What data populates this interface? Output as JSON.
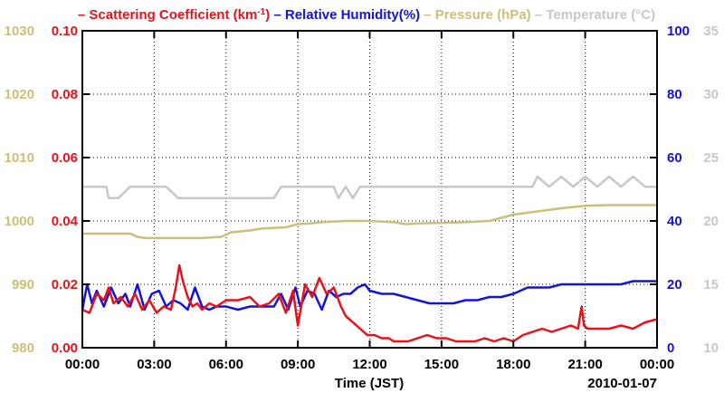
{
  "legend": [
    {
      "mark": "–",
      "label": "Scattering Coefficient (km",
      "sup": "-1",
      "tail": ")",
      "color": "#e8121b"
    },
    {
      "mark": "–",
      "label": "Relative Humidity(%)",
      "color": "#1414d6"
    },
    {
      "mark": "–",
      "label": "Pressure (hPa)",
      "color": "#cbbf7a"
    },
    {
      "mark": "–",
      "label": "Temperature (°C)",
      "color": "#c8c8c8"
    }
  ],
  "chart_data": {
    "type": "line",
    "xlabel": "Time (JST)",
    "date_label": "2010-01-07",
    "x_ticks": [
      "00:00",
      "03:00",
      "06:00",
      "09:00",
      "12:00",
      "15:00",
      "18:00",
      "21:00",
      "00:00"
    ],
    "xlim_hours": [
      0,
      24
    ],
    "grid": true,
    "axes": {
      "scattering": {
        "ticks": [
          "0.00",
          "0.02",
          "0.04",
          "0.06",
          "0.08",
          "0.10"
        ],
        "ylim": [
          0,
          0.1
        ],
        "side": "left-inner",
        "color": "#e8121b"
      },
      "pressure": {
        "ticks": [
          "980",
          "990",
          "1000",
          "1010",
          "1020",
          "1030"
        ],
        "ylim": [
          980,
          1030
        ],
        "side": "left-outer",
        "color": "#cbbf7a"
      },
      "humidity": {
        "ticks": [
          "0",
          "20",
          "40",
          "60",
          "80",
          "100"
        ],
        "ylim": [
          0,
          100
        ],
        "side": "right-inner",
        "color": "#1414d6"
      },
      "temperature": {
        "ticks": [
          "10",
          "15",
          "20",
          "25",
          "30",
          "35"
        ],
        "ylim": [
          10,
          35
        ],
        "side": "right-outer",
        "color": "#c8c8c8"
      }
    },
    "series": [
      {
        "name": "Scattering Coefficient (km-1)",
        "axis": "scattering",
        "color": "#e8121b",
        "x": [
          0,
          0.3,
          0.6,
          0.9,
          1.1,
          1.3,
          1.6,
          1.9,
          2.2,
          2.5,
          2.8,
          3.1,
          3.4,
          3.7,
          3.9,
          4.05,
          4.2,
          4.4,
          4.6,
          4.8,
          5.0,
          5.3,
          5.6,
          6.0,
          6.5,
          7.0,
          7.4,
          7.8,
          8.2,
          8.5,
          8.8,
          9.0,
          9.3,
          9.6,
          9.9,
          10.2,
          10.5,
          10.8,
          11.0,
          11.3,
          11.6,
          11.9,
          12.2,
          12.5,
          12.8,
          13.0,
          13.3,
          13.6,
          14.0,
          14.4,
          14.8,
          15.2,
          15.6,
          16.0,
          16.4,
          16.8,
          17.2,
          17.6,
          18.0,
          18.4,
          18.8,
          19.2,
          19.6,
          20.0,
          20.4,
          20.7,
          20.85,
          20.95,
          21.1,
          21.5,
          22.0,
          22.5,
          23.0,
          23.5,
          24.0
        ],
        "y": [
          0.012,
          0.011,
          0.017,
          0.015,
          0.019,
          0.014,
          0.016,
          0.013,
          0.017,
          0.012,
          0.015,
          0.011,
          0.013,
          0.012,
          0.019,
          0.026,
          0.021,
          0.016,
          0.013,
          0.014,
          0.012,
          0.014,
          0.013,
          0.015,
          0.015,
          0.016,
          0.013,
          0.014,
          0.017,
          0.011,
          0.018,
          0.007,
          0.02,
          0.016,
          0.022,
          0.017,
          0.019,
          0.013,
          0.01,
          0.008,
          0.006,
          0.004,
          0.004,
          0.003,
          0.003,
          0.002,
          0.002,
          0.002,
          0.003,
          0.004,
          0.003,
          0.003,
          0.002,
          0.002,
          0.002,
          0.003,
          0.002,
          0.003,
          0.002,
          0.004,
          0.005,
          0.006,
          0.005,
          0.006,
          0.007,
          0.006,
          0.013,
          0.007,
          0.006,
          0.006,
          0.006,
          0.007,
          0.006,
          0.008,
          0.009
        ]
      },
      {
        "name": "Relative Humidity(%)",
        "axis": "humidity",
        "color": "#1414d6",
        "x": [
          0,
          0.2,
          0.4,
          0.6,
          0.9,
          1.2,
          1.5,
          1.8,
          2.0,
          2.3,
          2.6,
          2.9,
          3.2,
          3.5,
          3.8,
          4.1,
          4.4,
          4.7,
          5.0,
          5.3,
          5.6,
          6.0,
          6.5,
          7.0,
          7.5,
          8.0,
          8.3,
          8.6,
          8.9,
          9.1,
          9.4,
          9.7,
          10.0,
          10.3,
          10.6,
          10.9,
          11.2,
          11.5,
          11.8,
          12.0,
          12.5,
          13.0,
          13.5,
          14.0,
          14.5,
          15.0,
          15.5,
          16.0,
          16.5,
          17.0,
          17.5,
          18.0,
          18.3,
          18.6,
          19.0,
          19.5,
          20.0,
          20.5,
          21.0,
          21.5,
          22.0,
          22.5,
          23.0,
          23.5,
          24.0
        ],
        "y": [
          12,
          20,
          14,
          18,
          13,
          19,
          14,
          17,
          13,
          20,
          12,
          17,
          18,
          13,
          15,
          14,
          12,
          19,
          13,
          12,
          13,
          13,
          12,
          13,
          13,
          13,
          17,
          12,
          19,
          13,
          18,
          17,
          12,
          18,
          16,
          17,
          17,
          19,
          20,
          18,
          17,
          17,
          16,
          15,
          14,
          14,
          14,
          15,
          15,
          16,
          16,
          17,
          18,
          19,
          19,
          19,
          20,
          20,
          20,
          20,
          20,
          20,
          21,
          21,
          21
        ]
      },
      {
        "name": "Pressure (hPa)",
        "axis": "pressure",
        "color": "#cbbf7a",
        "x": [
          0,
          0.5,
          1.0,
          1.5,
          2.0,
          2.3,
          2.6,
          3.0,
          4.0,
          5.0,
          5.8,
          6.2,
          7.0,
          7.5,
          8.5,
          9.0,
          9.5,
          10.0,
          11.0,
          12.0,
          13.0,
          13.5,
          14.0,
          15.0,
          16.0,
          17.0,
          18.0,
          19.0,
          20.0,
          20.5,
          21.0,
          22.0,
          23.0,
          24.0
        ],
        "y": [
          998,
          998,
          998,
          998,
          998,
          997.5,
          997.3,
          997.3,
          997.3,
          997.3,
          997.5,
          998.2,
          998.5,
          998.8,
          999,
          999.5,
          999.6,
          999.8,
          1000,
          1000,
          999.8,
          999.5,
          999.6,
          999.7,
          999.8,
          1000,
          1001,
          1001.5,
          1002,
          1002.2,
          1002.4,
          1002.5,
          1002.5,
          1002.5
        ]
      },
      {
        "name": "Temperature (°C)",
        "axis": "temperature",
        "color": "#c8c8c8",
        "x": [
          0,
          0.5,
          1.0,
          1.1,
          1.5,
          2.0,
          2.5,
          3.0,
          3.5,
          4.0,
          4.5,
          5.0,
          5.5,
          6.0,
          7.0,
          8.0,
          8.3,
          9.0,
          10.0,
          10.5,
          10.7,
          11.0,
          11.3,
          11.6,
          12.0,
          13.0,
          14.0,
          15.0,
          16.0,
          17.0,
          18.0,
          18.8,
          19.0,
          19.5,
          20.0,
          20.5,
          21.0,
          21.5,
          22.0,
          22.5,
          23.0,
          23.5,
          24.0
        ],
        "y": [
          22.7,
          22.7,
          22.7,
          21.8,
          21.8,
          22.7,
          22.7,
          22.7,
          22.7,
          21.8,
          21.8,
          21.8,
          21.8,
          21.8,
          21.8,
          21.8,
          22.7,
          22.7,
          22.7,
          22.7,
          21.8,
          22.7,
          21.8,
          22.7,
          22.7,
          22.7,
          22.7,
          22.7,
          22.7,
          22.7,
          22.7,
          22.7,
          23.5,
          22.7,
          23.5,
          22.7,
          23.5,
          22.7,
          23.5,
          22.7,
          23.5,
          22.7,
          22.7
        ]
      }
    ]
  }
}
